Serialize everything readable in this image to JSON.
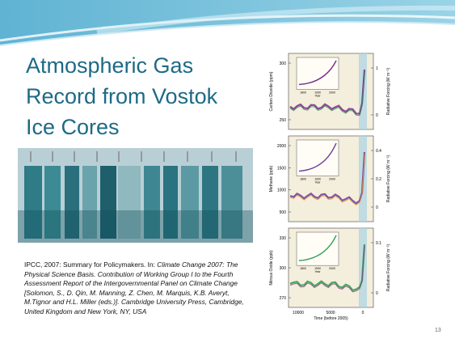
{
  "slide": {
    "title": "Atmospheric Gas Record from Vostok Ice Cores",
    "citation": {
      "plain": "IPCC, 2007: Summary for Policymakers. In: ",
      "italic": "Climate Change 2007: The Physical Science Basis. Contribution of Working Group I to the Fourth Assessment Report of the Intergovernmental Panel on Climate Change [Solomon, S., D. Qin, M. Manning, Z. Chen, M. Marquis, K.B. Averyt, M.Tignor and H.L. Miller (eds.)]. Cambridge University Press, Cambridge, United Kingdom and New York, NY, USA"
    },
    "page_number": 13,
    "figure": {
      "x_label": "Time (before 2005)",
      "x_ticks": [
        10000,
        5000,
        0
      ],
      "right_label": "Radiative Forcing (W m⁻²)",
      "inset_x_ticks": [
        1800,
        1900,
        2000
      ],
      "inset_x_label": "Year",
      "panels": [
        {
          "y_label": "Carbon Dioxide (ppm)",
          "y_ticks": [
            300,
            250
          ],
          "right_ticks": [
            1,
            0
          ]
        },
        {
          "y_label": "Methane (ppb)",
          "y_ticks": [
            2000,
            1500,
            1000,
            500
          ],
          "right_ticks": [
            0.4,
            0.2,
            0
          ]
        },
        {
          "y_label": "Nitrous Oxide (ppb)",
          "y_ticks": [
            330,
            300,
            270
          ],
          "right_ticks": [
            0.1,
            0
          ]
        }
      ]
    }
  }
}
